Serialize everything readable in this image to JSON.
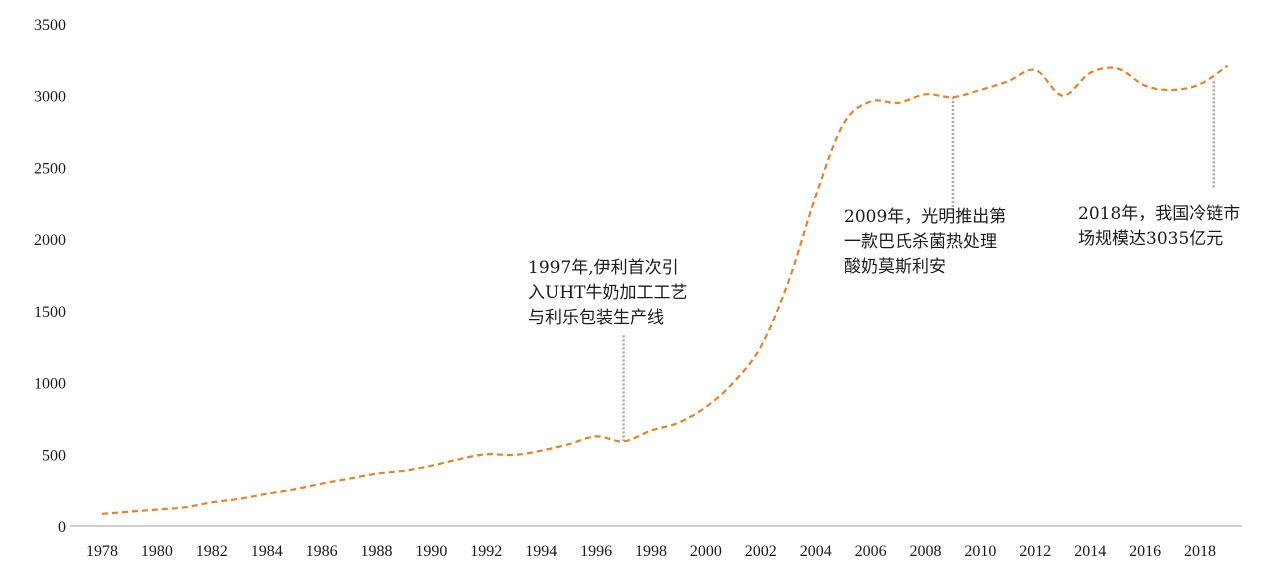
{
  "chart_data": {
    "type": "line",
    "title": "",
    "xlabel": "",
    "ylabel": "",
    "ylim": [
      0,
      3500
    ],
    "xlim": [
      1978,
      2019
    ],
    "y_ticks": [
      "0",
      "500",
      "1000",
      "1500",
      "2000",
      "2500",
      "3000",
      "3500"
    ],
    "x_ticks": [
      "1978",
      "1980",
      "1982",
      "1984",
      "1986",
      "1988",
      "1990",
      "1992",
      "1994",
      "1996",
      "1998",
      "2000",
      "2002",
      "2004",
      "2006",
      "2008",
      "2010",
      "2012",
      "2014",
      "2016",
      "2018"
    ],
    "grid": false,
    "legend": "none",
    "line_color": "#E8822A",
    "line_style": "dashed",
    "series": [
      {
        "x": [
          1978,
          1979,
          1980,
          1981,
          1982,
          1983,
          1984,
          1985,
          1986,
          1987,
          1988,
          1989,
          1990,
          1991,
          1992,
          1993,
          1994,
          1995,
          1996,
          1997,
          1998,
          1999,
          2000,
          2001,
          2002,
          2003,
          2004,
          2005,
          2006,
          2007,
          2008,
          2009,
          2010,
          2011,
          2012,
          2013,
          2014,
          2015,
          2016,
          2017,
          2018,
          2019
        ],
        "values": [
          85,
          100,
          115,
          130,
          165,
          190,
          225,
          255,
          295,
          330,
          365,
          385,
          420,
          465,
          500,
          495,
          525,
          570,
          625,
          590,
          665,
          720,
          830,
          1000,
          1250,
          1700,
          2300,
          2800,
          2960,
          2950,
          3010,
          2990,
          3040,
          3100,
          3180,
          3000,
          3160,
          3190,
          3070,
          3040,
          3080,
          3210
        ]
      }
    ],
    "annotations": [
      {
        "x": 1997,
        "y": 590,
        "label_top": 1330,
        "lines": [
          "1997年,伊利首次引",
          "入UHT牛奶加工工艺",
          "与利乐包装生产线"
        ]
      },
      {
        "x": 2009,
        "y": 2990,
        "label_top": 2200,
        "lines": [
          "2009年，光明推出第",
          "一款巴氏杀菌热处理",
          "酸奶莫斯利安"
        ]
      },
      {
        "x": 2018.5,
        "y": 3100,
        "label_top": 2350,
        "lines": [
          "2018年，我国冷链市",
          "场规模达3035亿元"
        ]
      }
    ]
  }
}
